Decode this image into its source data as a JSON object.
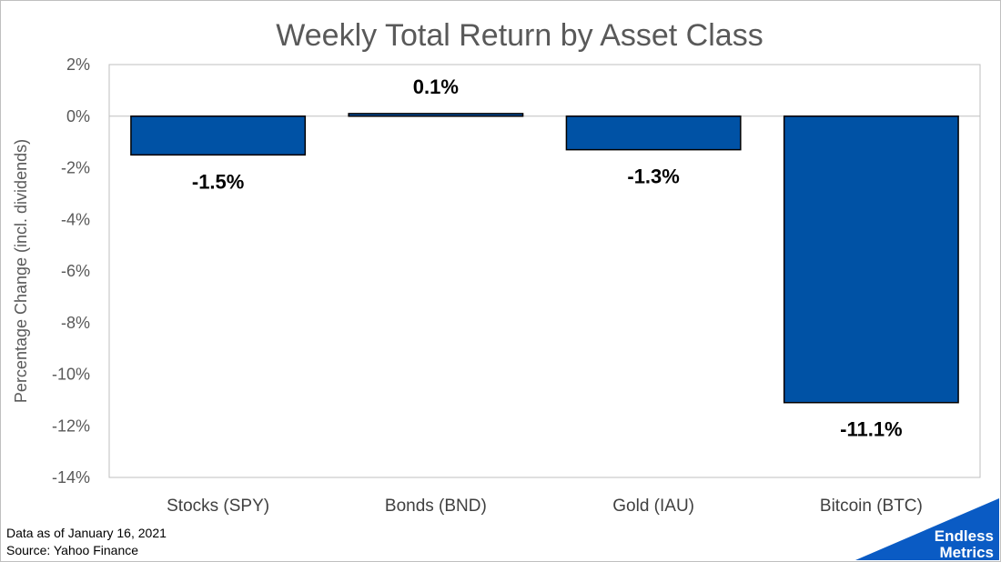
{
  "chart_data": {
    "type": "bar",
    "title": "Weekly Total Return by Asset Class",
    "ylabel": "Percentage Change (incl. dividends)",
    "xlabel": "",
    "categories": [
      "Stocks (SPY)",
      "Bonds (BND)",
      "Gold (IAU)",
      "Bitcoin (BTC)"
    ],
    "values": [
      -1.5,
      0.1,
      -1.3,
      -11.1
    ],
    "data_labels": [
      "-1.5%",
      "0.1%",
      "-1.3%",
      "-11.1%"
    ],
    "ylim": [
      -14,
      2
    ],
    "yticks": [
      2,
      0,
      -2,
      -4,
      -6,
      -8,
      -10,
      -12,
      -14
    ],
    "ytick_labels": [
      "2%",
      "0%",
      "-2%",
      "-4%",
      "-6%",
      "-8%",
      "-10%",
      "-12%",
      "-14%"
    ],
    "grid": false,
    "legend": "none",
    "bar_color": "#0052a5"
  },
  "footnote": {
    "date_note": "Data as of January 16, 2021",
    "source_note": "Source: Yahoo Finance"
  },
  "logo": {
    "line1": "Endless",
    "line2": "Metrics",
    "color": "#0a5bc4"
  }
}
